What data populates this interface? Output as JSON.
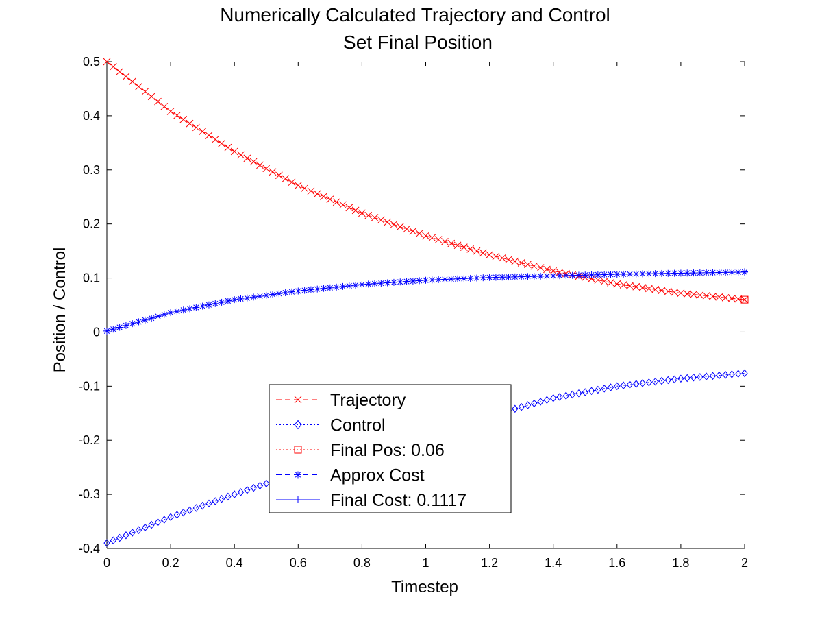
{
  "chart_data": {
    "type": "line",
    "title": "Numerically Calculated Trajectory and Control",
    "subtitle": "Set Final Position",
    "xlabel": "Timestep",
    "ylabel": "Position / Control",
    "xlim": [
      0,
      2
    ],
    "ylim": [
      -0.4,
      0.5
    ],
    "xticks": [
      "0",
      "0.2",
      "0.4",
      "0.6",
      "0.8",
      "1",
      "1.2",
      "1.4",
      "1.6",
      "1.8",
      "2"
    ],
    "yticks": [
      "-0.4",
      "-0.3",
      "-0.2",
      "-0.1",
      "0",
      "0.1",
      "0.2",
      "0.3",
      "0.4",
      "0.5"
    ],
    "grid": false,
    "legend_position": "lower-center",
    "x_step": 0.02,
    "series": [
      {
        "name": "Trajectory",
        "color": "#ff0000",
        "marker": "x",
        "line": "dashed",
        "x": [
          0,
          0.2,
          0.4,
          0.6,
          0.8,
          1.0,
          1.2,
          1.4,
          1.6,
          1.8,
          2.0
        ],
        "values": [
          0.5,
          0.408,
          0.334,
          0.271,
          0.22,
          0.178,
          0.143,
          0.113,
          0.089,
          0.072,
          0.06
        ]
      },
      {
        "name": "Control",
        "color": "#0000ff",
        "marker": "diamond",
        "line": "dotted",
        "x": [
          0,
          0.2,
          0.4,
          0.6,
          0.8,
          1.0,
          1.2,
          1.4,
          1.6,
          1.8,
          2.0
        ],
        "values": [
          -0.39,
          -0.342,
          -0.3,
          -0.26,
          -0.225,
          -0.19,
          -0.155,
          -0.122,
          -0.1,
          -0.086,
          -0.076
        ]
      },
      {
        "name": "Final Pos:  0.06",
        "color": "#ff0000",
        "marker": "square",
        "line": "dotted",
        "x": [
          2
        ],
        "values": [
          0.06
        ]
      },
      {
        "name": "Approx Cost",
        "color": "#0000ff",
        "marker": "asterisk",
        "line": "dashed",
        "x": [
          0,
          0.2,
          0.4,
          0.6,
          0.8,
          1.0,
          1.2,
          1.4,
          1.6,
          1.8,
          2.0
        ],
        "values": [
          0.002,
          0.036,
          0.06,
          0.076,
          0.088,
          0.096,
          0.101,
          0.104,
          0.107,
          0.109,
          0.111
        ]
      },
      {
        "name": "Final Cost:  0.1117",
        "color": "#0000ff",
        "marker": "plus",
        "line": "solid",
        "x": [
          2
        ],
        "values": [
          0.1117
        ]
      }
    ]
  }
}
